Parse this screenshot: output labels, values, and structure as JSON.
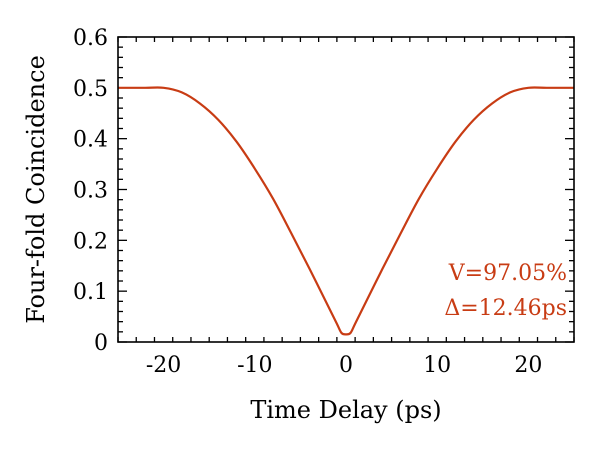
{
  "chart_data": {
    "type": "line",
    "xlabel": "Time Delay (ps)",
    "ylabel": "Four-fold Coincidence",
    "xlim": [
      -25,
      25
    ],
    "ylim": [
      0,
      0.6
    ],
    "xticks": [
      -20,
      -10,
      0,
      10,
      20
    ],
    "xtick_labels": [
      "-20",
      "-10",
      "0",
      "10",
      "20"
    ],
    "yticks": [
      0,
      0.1,
      0.2,
      0.3,
      0.4,
      0.5,
      0.6
    ],
    "ytick_labels": [
      "0",
      "0.1",
      "0.2",
      "0.3",
      "0.4",
      "0.5",
      "0.6"
    ],
    "grid": false,
    "series": [
      {
        "color": "#c83c14",
        "x": [
          -25,
          -22,
          -20,
          -18,
          -16,
          -14,
          -12,
          -10,
          -8,
          -6,
          -4,
          -2,
          -1,
          -0.5,
          0,
          0.5,
          1,
          2,
          4,
          6,
          8,
          10,
          12,
          14,
          16,
          18,
          20,
          22,
          25
        ],
        "y": [
          0.5,
          0.5,
          0.5,
          0.491,
          0.469,
          0.437,
          0.394,
          0.341,
          0.282,
          0.214,
          0.144,
          0.072,
          0.036,
          0.018,
          0.015,
          0.018,
          0.036,
          0.072,
          0.144,
          0.214,
          0.282,
          0.341,
          0.394,
          0.437,
          0.469,
          0.491,
          0.5,
          0.5,
          0.5
        ]
      }
    ],
    "annotations": [
      {
        "text": "V=97.05%",
        "color": "#c83c14"
      },
      {
        "text": "Δ=12.46ps",
        "color": "#c83c14"
      }
    ]
  }
}
